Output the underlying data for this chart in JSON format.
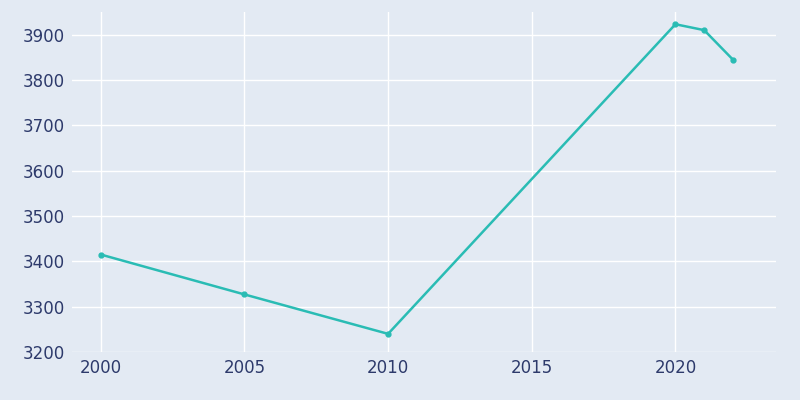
{
  "years": [
    2000,
    2005,
    2010,
    2020,
    2021,
    2022
  ],
  "population": [
    3415,
    3327,
    3240,
    3923,
    3910,
    3845
  ],
  "line_color": "#2abcb4",
  "line_width": 1.8,
  "marker": "o",
  "marker_size": 3.5,
  "background_color": "#e3eaf3",
  "grid_color": "#ffffff",
  "ylim": [
    3200,
    3950
  ],
  "xlim": [
    1999,
    2023.5
  ],
  "yticks": [
    3200,
    3300,
    3400,
    3500,
    3600,
    3700,
    3800,
    3900
  ],
  "xticks": [
    2000,
    2005,
    2010,
    2015,
    2020
  ],
  "tick_color": "#2d3a6b",
  "tick_fontsize": 12,
  "axes_facecolor": "#e3eaf3",
  "figure_facecolor": "#e3eaf3"
}
